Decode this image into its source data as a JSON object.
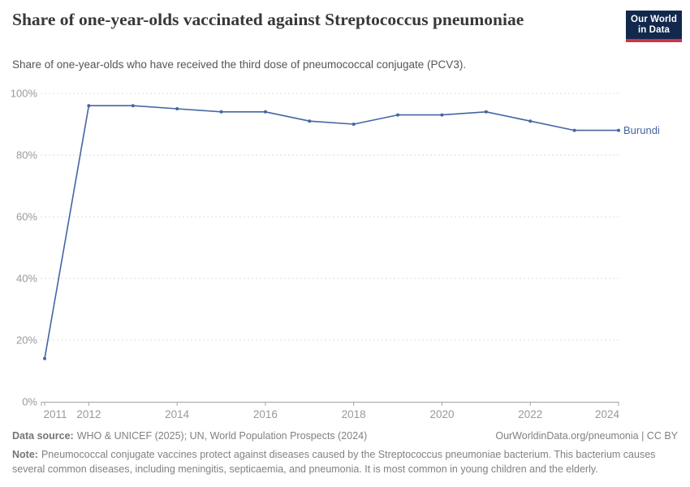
{
  "header": {
    "title": "Share of one-year-olds vaccinated against Streptococcus pneumoniae",
    "subtitle": "Share of one-year-olds who have received the third dose of pneumococcal conjugate (PCV3).",
    "logo": {
      "line1": "Our World",
      "line2": "in Data",
      "bg_color": "#12294d",
      "accent_color": "#cf3444"
    }
  },
  "chart_data": {
    "type": "line",
    "title": "Share of one-year-olds vaccinated against Streptococcus pneumoniae",
    "x": [
      2011,
      2012,
      2013,
      2014,
      2015,
      2016,
      2017,
      2018,
      2019,
      2020,
      2021,
      2022,
      2023,
      2024
    ],
    "series": [
      {
        "name": "Burundi",
        "color": "#4565a3",
        "values": [
          14,
          96,
          96,
          95,
          94,
          94,
          91,
          90,
          93,
          93,
          94,
          91,
          88,
          88
        ]
      }
    ],
    "entity_label": "Burundi",
    "xlim": [
      2011,
      2024
    ],
    "ylim": [
      0,
      100
    ],
    "yticks": [
      0,
      20,
      40,
      60,
      80,
      100
    ],
    "ytick_suffix": "%",
    "xticks": [
      2011,
      2012,
      2014,
      2016,
      2018,
      2020,
      2022,
      2024
    ],
    "legend_position": "right-of-line",
    "grid": "horizontal-dashed",
    "grid_color": "#dcdcdc",
    "axis_color": "#a3a3a3",
    "tick_label_color": "#999999"
  },
  "footer": {
    "data_source_label": "Data source:",
    "data_source": "WHO & UNICEF (2025); UN, World Population Prospects (2024)",
    "citation": "OurWorldinData.org/pneumonia | CC BY",
    "note_label": "Note:",
    "note": "Pneumococcal conjugate vaccines protect against diseases caused by the Streptococcus pneumoniae bacterium. This bacterium causes several common diseases, including meningitis, septicaemia, and pneumonia. It is most common in young children and the elderly."
  }
}
